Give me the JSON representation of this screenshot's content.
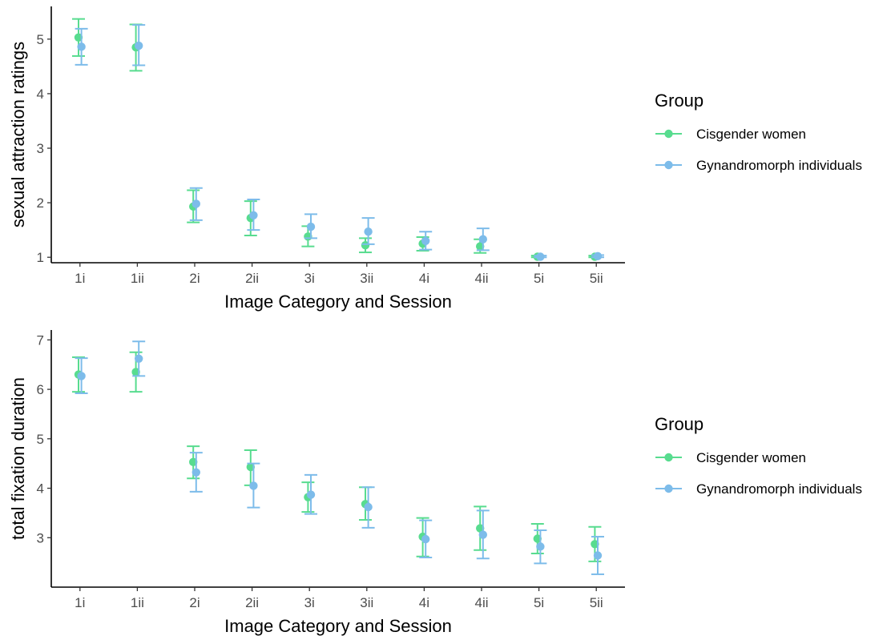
{
  "chart_data": [
    {
      "type": "scatter",
      "subtype": "point-errorbar",
      "xlabel": "Image Category and Session",
      "ylabel": "sexual attraction ratings",
      "categories": [
        "1i",
        "1ii",
        "2i",
        "2ii",
        "3i",
        "3ii",
        "4i",
        "4ii",
        "5i",
        "5ii"
      ],
      "ylim": [
        0.9,
        5.6
      ],
      "yticks": [
        1,
        2,
        3,
        4,
        5
      ],
      "legend": {
        "title": "Group",
        "position": "right"
      },
      "grid": false,
      "series": [
        {
          "name": "Cisgender women",
          "color": "#58DC8F",
          "values": [
            5.03,
            4.85,
            1.93,
            1.72,
            1.38,
            1.22,
            1.25,
            1.2,
            1.01,
            1.01
          ],
          "lower": [
            4.69,
            4.42,
            1.64,
            1.4,
            1.2,
            1.09,
            1.12,
            1.08,
            1.0,
            1.0
          ],
          "upper": [
            5.37,
            5.27,
            2.23,
            2.03,
            1.57,
            1.35,
            1.37,
            1.33,
            1.03,
            1.03
          ]
        },
        {
          "name": "Gynandromorph individuals",
          "color": "#7DBCEA",
          "values": [
            4.86,
            4.88,
            1.98,
            1.77,
            1.56,
            1.47,
            1.3,
            1.33,
            1.01,
            1.02
          ],
          "lower": [
            4.53,
            4.52,
            1.68,
            1.5,
            1.35,
            1.24,
            1.14,
            1.13,
            1.0,
            1.0
          ],
          "upper": [
            5.19,
            5.26,
            2.27,
            2.06,
            1.79,
            1.72,
            1.47,
            1.53,
            1.03,
            1.04
          ]
        }
      ]
    },
    {
      "type": "scatter",
      "subtype": "point-errorbar",
      "xlabel": "Image Category and Session",
      "ylabel": "total fixation duration",
      "categories": [
        "1i",
        "1ii",
        "2i",
        "2ii",
        "3i",
        "3ii",
        "4i",
        "4ii",
        "5i",
        "5ii"
      ],
      "ylim": [
        2.0,
        7.2
      ],
      "yticks": [
        3,
        4,
        5,
        6,
        7
      ],
      "legend": {
        "title": "Group",
        "position": "right"
      },
      "grid": false,
      "series": [
        {
          "name": "Cisgender women",
          "color": "#58DC8F",
          "values": [
            6.3,
            6.35,
            4.53,
            4.43,
            3.82,
            3.68,
            3.02,
            3.19,
            2.98,
            2.87
          ],
          "lower": [
            5.95,
            5.95,
            4.2,
            4.06,
            3.52,
            3.36,
            2.62,
            2.75,
            2.68,
            2.52
          ],
          "upper": [
            6.65,
            6.75,
            4.85,
            4.77,
            4.12,
            4.02,
            3.4,
            3.63,
            3.28,
            3.22
          ]
        },
        {
          "name": "Gynandromorph individuals",
          "color": "#7DBCEA",
          "values": [
            6.27,
            6.62,
            4.32,
            4.05,
            3.87,
            3.62,
            2.97,
            3.06,
            2.82,
            2.64
          ],
          "lower": [
            5.92,
            6.27,
            3.93,
            3.61,
            3.48,
            3.2,
            2.6,
            2.58,
            2.48,
            2.26
          ],
          "upper": [
            6.63,
            6.97,
            4.72,
            4.5,
            4.27,
            4.02,
            3.35,
            3.55,
            3.15,
            3.02
          ]
        }
      ]
    }
  ]
}
